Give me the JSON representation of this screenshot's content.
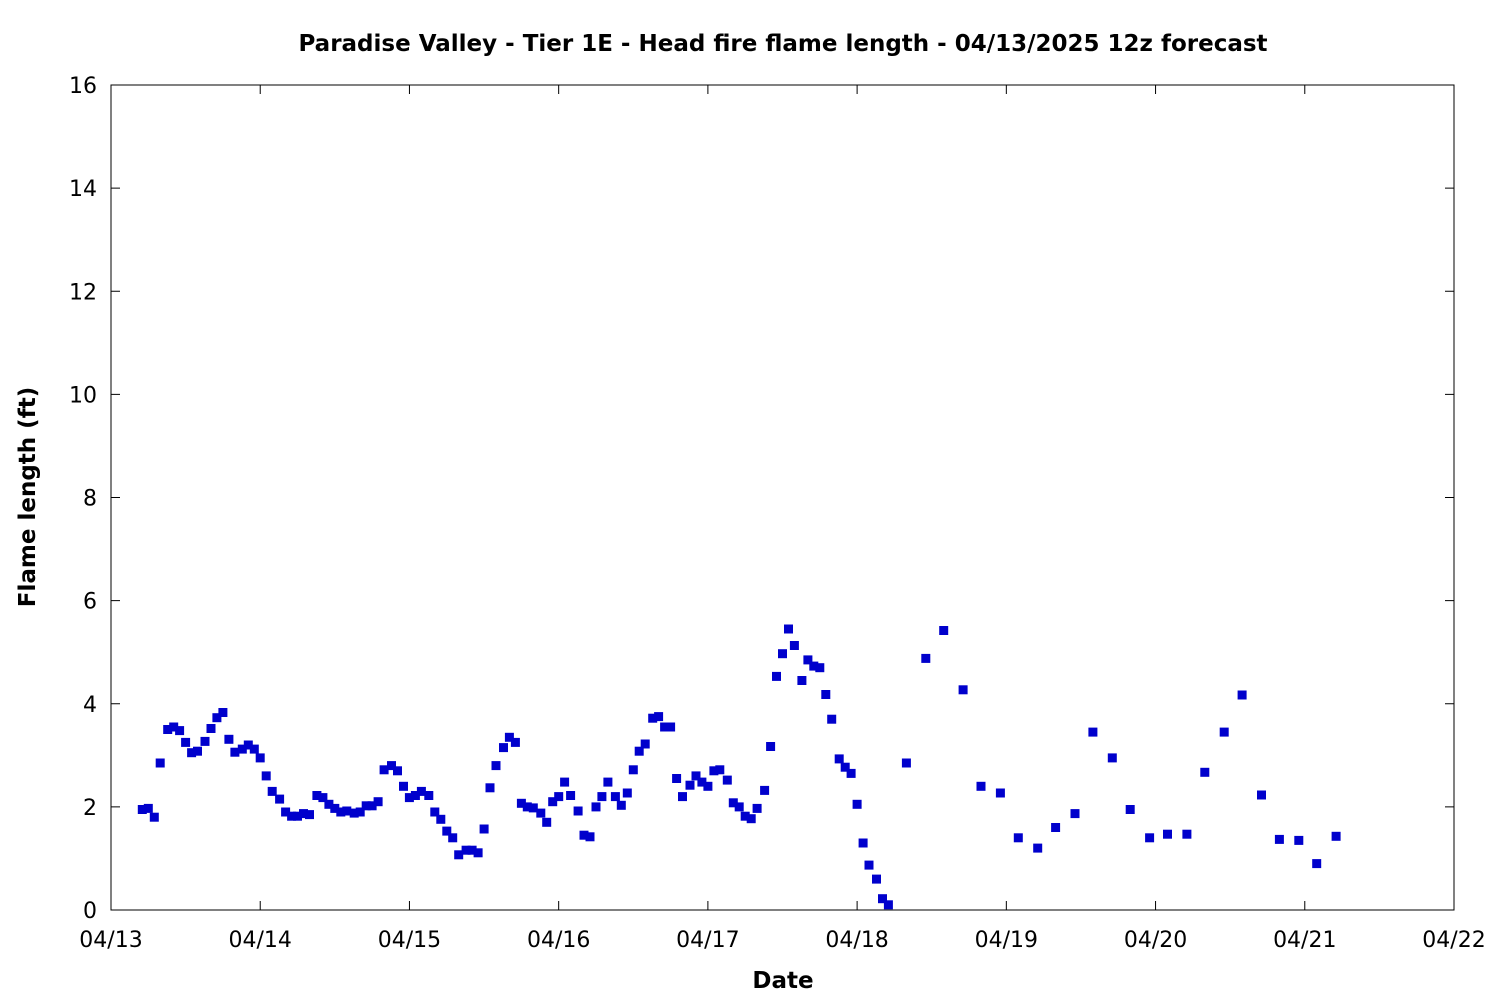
{
  "chart_data": {
    "type": "scatter",
    "title": "Paradise Valley - Tier 1E - Head fire flame length - 04/13/2025 12z forecast",
    "xlabel": "Date",
    "ylabel": "Flame length (ft)",
    "x_tick_labels": [
      "04/13",
      "04/14",
      "04/15",
      "04/16",
      "04/17",
      "04/18",
      "04/19",
      "04/20",
      "04/21",
      "04/22"
    ],
    "y_ticks": [
      0,
      2,
      4,
      6,
      8,
      10,
      12,
      14,
      16
    ],
    "x_range_days": [
      0,
      9
    ],
    "ylim": [
      0,
      16
    ],
    "grid": false,
    "legend": "none",
    "marker_color": "#0000cc",
    "series": [
      {
        "x_days": [
          0.21,
          0.25,
          0.29,
          0.33,
          0.38,
          0.42,
          0.46,
          0.5,
          0.54,
          0.58,
          0.63,
          0.67,
          0.71,
          0.75,
          0.79,
          0.83,
          0.88,
          0.92,
          0.96,
          1.0,
          1.04,
          1.08,
          1.13,
          1.17,
          1.21,
          1.25,
          1.29,
          1.33,
          1.38,
          1.42,
          1.46,
          1.5,
          1.54,
          1.58,
          1.63,
          1.67,
          1.71,
          1.75,
          1.79,
          1.83,
          1.88,
          1.92,
          1.96,
          2.0,
          2.04,
          2.08,
          2.13,
          2.17,
          2.21,
          2.25,
          2.29,
          2.33,
          2.38,
          2.42,
          2.46,
          2.5,
          2.54,
          2.58,
          2.63,
          2.67,
          2.71,
          2.75,
          2.79,
          2.83,
          2.88,
          2.92,
          2.96,
          3.0,
          3.04,
          3.08,
          3.13,
          3.17,
          3.21,
          3.25,
          3.29,
          3.33,
          3.38,
          3.42,
          3.46,
          3.5,
          3.54,
          3.58,
          3.63,
          3.67,
          3.71,
          3.75,
          3.79,
          3.83,
          3.88,
          3.92,
          3.96,
          4.0,
          4.04,
          4.08,
          4.13,
          4.17,
          4.21,
          4.25,
          4.29,
          4.33,
          4.38,
          4.42,
          4.46,
          4.5,
          4.54,
          4.58,
          4.63,
          4.67,
          4.71,
          4.75,
          4.79,
          4.83,
          4.88,
          4.92,
          4.96,
          5.0,
          5.04,
          5.08,
          5.13,
          5.17,
          5.21,
          5.33,
          5.46,
          5.58,
          5.71,
          5.83,
          5.96,
          6.08,
          6.21,
          6.33,
          6.46,
          6.58,
          6.71,
          6.83,
          6.96,
          7.08,
          7.21,
          7.33,
          7.46,
          7.58,
          7.71,
          7.83,
          7.96,
          8.08,
          8.21
        ],
        "y": [
          1.95,
          1.97,
          1.8,
          2.85,
          3.5,
          3.55,
          3.48,
          3.25,
          3.05,
          3.08,
          3.27,
          3.52,
          3.73,
          3.83,
          3.31,
          3.06,
          3.12,
          3.2,
          3.12,
          2.95,
          2.6,
          2.3,
          2.15,
          1.9,
          1.82,
          1.82,
          1.87,
          1.85,
          2.22,
          2.18,
          2.05,
          1.97,
          1.9,
          1.92,
          1.88,
          1.9,
          2.02,
          2.02,
          2.1,
          2.72,
          2.8,
          2.7,
          2.4,
          2.18,
          2.22,
          2.3,
          2.22,
          1.9,
          1.76,
          1.53,
          1.4,
          1.07,
          1.16,
          1.16,
          1.11,
          1.57,
          2.37,
          2.8,
          3.15,
          3.35,
          3.25,
          2.07,
          2.0,
          1.98,
          1.88,
          1.7,
          2.1,
          2.2,
          2.48,
          2.22,
          1.92,
          1.45,
          1.42,
          2.0,
          2.2,
          2.48,
          2.2,
          2.03,
          2.27,
          2.72,
          3.08,
          3.22,
          3.72,
          3.75,
          3.55,
          3.55,
          2.55,
          2.2,
          2.42,
          2.6,
          2.48,
          2.4,
          2.7,
          2.72,
          2.52,
          2.08,
          2.0,
          1.82,
          1.77,
          1.97,
          2.32,
          3.17,
          4.53,
          4.97,
          5.45,
          5.13,
          4.45,
          4.85,
          4.73,
          4.7,
          4.18,
          3.7,
          2.93,
          2.77,
          2.65,
          2.05,
          1.3,
          0.87,
          0.6,
          0.22,
          0.1,
          2.85,
          4.88,
          5.42,
          4.27,
          2.4,
          2.27,
          1.4,
          1.2,
          1.6,
          1.87,
          3.45,
          2.95,
          1.95,
          1.4,
          1.47,
          1.47,
          2.67,
          3.45,
          4.17,
          2.23,
          1.37,
          1.35,
          0.9,
          1.43
        ]
      }
    ]
  }
}
